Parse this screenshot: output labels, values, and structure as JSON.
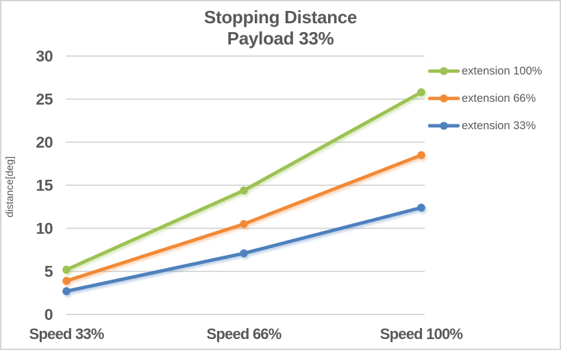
{
  "chart_data": {
    "type": "line",
    "title": "Stopping Distance",
    "subtitle": "Payload 33%",
    "ylabel": "distance[deg]",
    "xlabel": "",
    "categories": [
      "Speed 33%",
      "Speed 66%",
      "Speed 100%"
    ],
    "series": [
      {
        "name": "extension 100%",
        "color": "#9CC253",
        "values": [
          5.2,
          14.4,
          25.8
        ]
      },
      {
        "name": "extension 66%",
        "color": "#F08A38",
        "values": [
          3.9,
          10.5,
          18.5
        ]
      },
      {
        "name": "extension 33%",
        "color": "#4E81BD",
        "values": [
          2.7,
          7.1,
          12.4
        ]
      }
    ],
    "ylim": [
      0,
      30
    ],
    "yticks": [
      0,
      5,
      10,
      15,
      20,
      25,
      30
    ],
    "grid": true,
    "legend_position": "right",
    "colors": {
      "text": "#595959",
      "gridline": "#D9D9D9",
      "frame_border": "#D5D5D5",
      "background": "#FFFFFF"
    }
  }
}
